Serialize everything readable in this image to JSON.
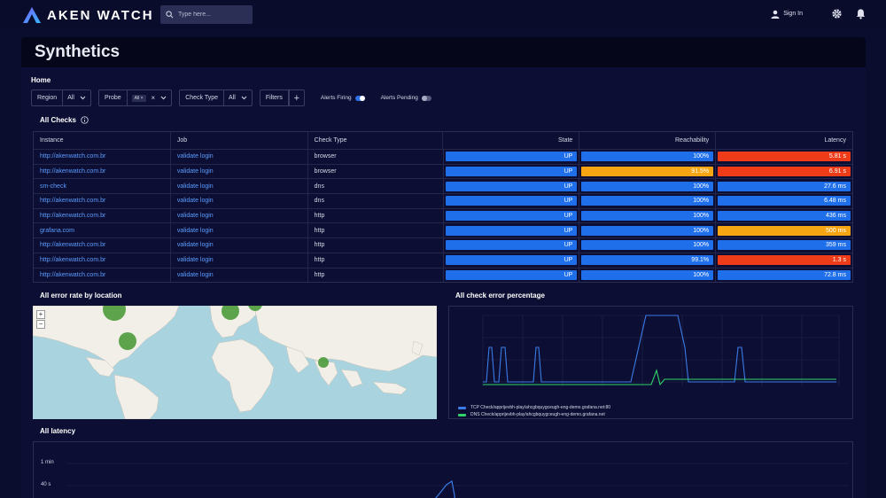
{
  "app": {
    "name": "AKEN WATCH",
    "search_placeholder": "Type here...",
    "sign_in": "Sign In"
  },
  "page": {
    "title": "Synthetics",
    "breadcrumb": "Home"
  },
  "filters": [
    {
      "label": "Region",
      "value": "All"
    },
    {
      "label": "Probe",
      "value": "All"
    },
    {
      "label": "Check Type",
      "value": "All"
    }
  ],
  "filters_button": "Filters",
  "toggles": [
    {
      "label": "Alerts Firing",
      "on": true
    },
    {
      "label": "Alerts Pending",
      "on": false
    }
  ],
  "checks": {
    "title": "All Checks",
    "columns": [
      "Instance",
      "Job",
      "Check Type",
      "State",
      "Reachability",
      "Latency"
    ],
    "rows": [
      {
        "instance": "http://akenwatch.com.br",
        "job": "validate login",
        "type": "browser",
        "state": "UP",
        "reach": "100%",
        "reach_color": "#1f6feb",
        "latency": "5.81 s",
        "lat_color": "#ee3b18"
      },
      {
        "instance": "http://akenwatch.com.br",
        "job": "validate login",
        "type": "browser",
        "state": "UP",
        "reach": "91.5%",
        "reach_color": "#f5a511",
        "latency": "6.91 s",
        "lat_color": "#ee3b18"
      },
      {
        "instance": "sm-check",
        "job": "validate login",
        "type": "dns",
        "state": "UP",
        "reach": "100%",
        "reach_color": "#1f6feb",
        "latency": "27.6 ms",
        "lat_color": "#1f6feb"
      },
      {
        "instance": "http://akenwatch.com.br",
        "job": "validate login",
        "type": "dns",
        "state": "UP",
        "reach": "100%",
        "reach_color": "#1f6feb",
        "latency": "6.48 ms",
        "lat_color": "#1f6feb"
      },
      {
        "instance": "http://akenwatch.com.br",
        "job": "validate login",
        "type": "http",
        "state": "UP",
        "reach": "100%",
        "reach_color": "#1f6feb",
        "latency": "436 ms",
        "lat_color": "#1f6feb"
      },
      {
        "instance": "grafana.com",
        "job": "validate login",
        "type": "http",
        "state": "UP",
        "reach": "100%",
        "reach_color": "#1f6feb",
        "latency": "500 ms",
        "lat_color": "#f5a511"
      },
      {
        "instance": "http://akenwatch.com.br",
        "job": "validate login",
        "type": "http",
        "state": "UP",
        "reach": "100%",
        "reach_color": "#1f6feb",
        "latency": "359 ms",
        "lat_color": "#1f6feb"
      },
      {
        "instance": "http://akenwatch.com.br",
        "job": "validate login",
        "type": "http",
        "state": "UP",
        "reach": "99.1%",
        "reach_color": "#1f6feb",
        "latency": "1.3 s",
        "lat_color": "#ee3b18"
      },
      {
        "instance": "http://akenwatch.com.br",
        "job": "validate login",
        "type": "http",
        "state": "UP",
        "reach": "100%",
        "reach_color": "#1f6feb",
        "latency": "72.8 ms",
        "lat_color": "#1f6feb"
      }
    ]
  },
  "map": {
    "title": "All error rate by location",
    "zoom_in": "+",
    "zoom_out": "−"
  },
  "error_chart": {
    "title": "All check error percentage",
    "legend": [
      {
        "name": "TCP Check/apprijevbh-play/ahcgbquygceugh-eng-demo.grafana.net:80",
        "color": "#3b7be8"
      },
      {
        "name": "DNS Check/apprijevbh-play/ahcgbquygceugh-eng-demo.grafana.net",
        "color": "#2ed36b"
      }
    ]
  },
  "latency_chart": {
    "title": "All latency",
    "y_ticks": [
      "1 min",
      "40 s"
    ]
  },
  "colors": {
    "state_up": "#1f6feb",
    "accent": "#1f6feb",
    "warning": "#f5a511",
    "critical": "#ee3b18"
  }
}
